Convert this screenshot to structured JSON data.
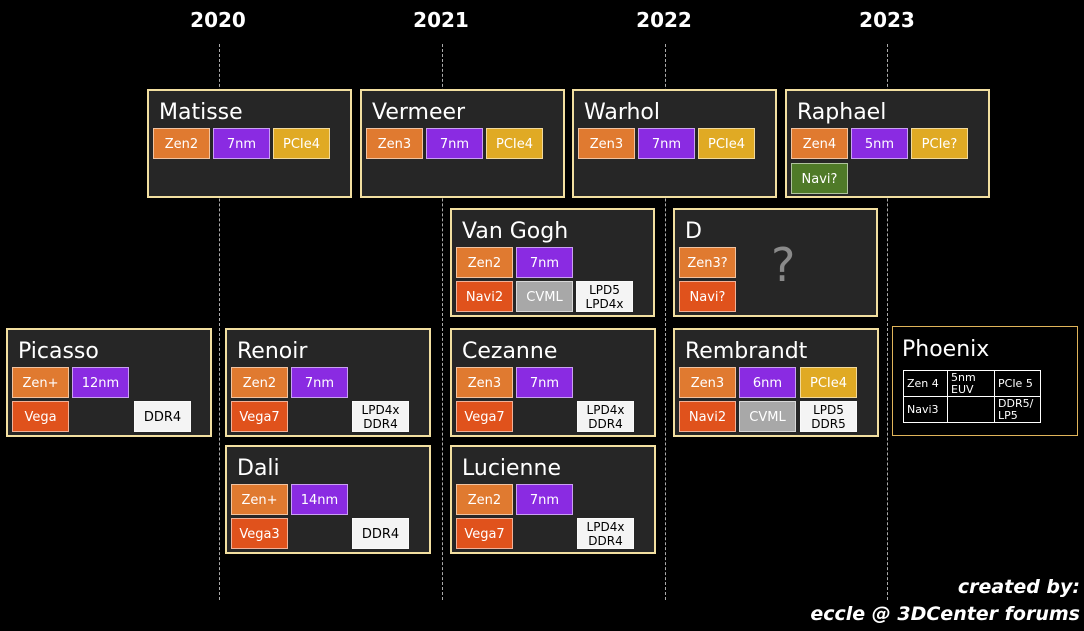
{
  "years": [
    "2020",
    "2021",
    "2022",
    "2023"
  ],
  "cards": {
    "matisse": {
      "title": "Matisse",
      "chips": [
        "Zen2",
        "7nm",
        "PCIe4"
      ]
    },
    "vermeer": {
      "title": "Vermeer",
      "chips": [
        "Zen3",
        "7nm",
        "PCIe4"
      ]
    },
    "warhol": {
      "title": "Warhol",
      "chips": [
        "Zen3",
        "7nm",
        "PCIe4"
      ]
    },
    "raphael": {
      "title": "Raphael",
      "chips": [
        "Zen4",
        "5nm",
        "PCIe?",
        "Navi?"
      ]
    },
    "vangogh": {
      "title": "Van Gogh",
      "chips": [
        "Zen2",
        "7nm",
        "Navi2",
        "CVML",
        "LPD5",
        "LPD4x"
      ]
    },
    "d": {
      "title": "D",
      "chips": [
        "Zen3?",
        "Navi?"
      ],
      "mark": "?"
    },
    "picasso": {
      "title": "Picasso",
      "chips": [
        "Zen+",
        "12nm",
        "Vega",
        "DDR4"
      ]
    },
    "renoir": {
      "title": "Renoir",
      "chips": [
        "Zen2",
        "7nm",
        "Vega7",
        "LPD4x",
        "DDR4"
      ]
    },
    "cezanne": {
      "title": "Cezanne",
      "chips": [
        "Zen3",
        "7nm",
        "Vega7",
        "LPD4x",
        "DDR4"
      ]
    },
    "rembrandt": {
      "title": "Rembrandt",
      "chips": [
        "Zen3",
        "6nm",
        "PCIe4",
        "Navi2",
        "CVML",
        "LPD5",
        "DDR5"
      ]
    },
    "dali": {
      "title": "Dali",
      "chips": [
        "Zen+",
        "14nm",
        "Vega3",
        "DDR4"
      ]
    },
    "lucienne": {
      "title": "Lucienne",
      "chips": [
        "Zen2",
        "7nm",
        "Vega7",
        "LPD4x",
        "DDR4"
      ]
    }
  },
  "phoenix": {
    "title": "Phoenix",
    "cells": [
      "Zen 4",
      "5nm",
      "EUV",
      "PCIe 5",
      "Navi3",
      "",
      "DDR5/",
      "LP5"
    ]
  },
  "credit": {
    "line1": "created by:",
    "line2": "eccle @ 3DCenter forums"
  },
  "colors": {
    "zen": "#e07a30",
    "node": "#8a2be2",
    "pcie": "#e0aa24",
    "gpu": "#e0521c",
    "navi_future": "#4f7a28",
    "cvml": "#a8a8a8",
    "memory": "#f4f4f4",
    "card_border": "#f2dfa0",
    "card_bg": "#262626"
  }
}
